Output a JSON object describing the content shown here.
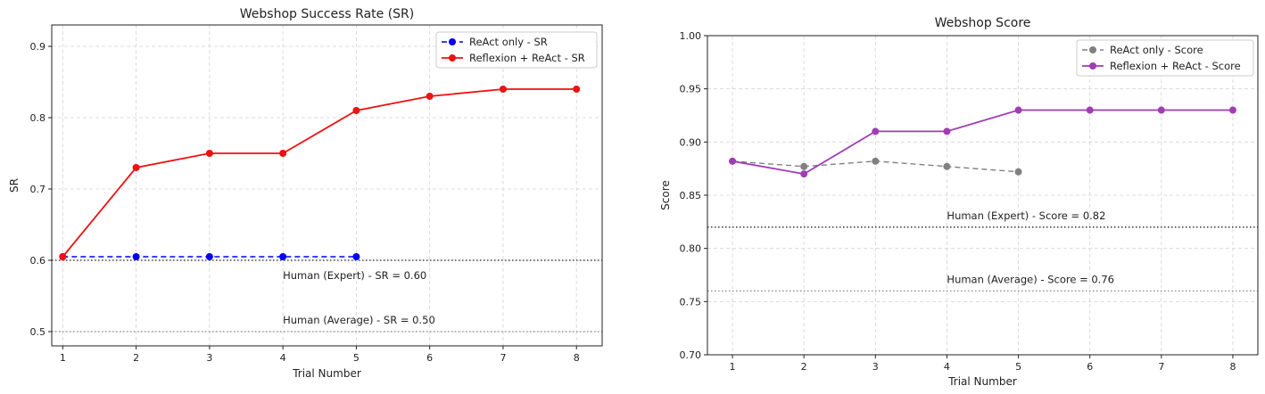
{
  "chart_data": [
    {
      "type": "line",
      "title": "Webshop Success Rate (SR)",
      "xlabel": "Trial Number",
      "ylabel": "SR",
      "xlim": [
        0.85,
        8.35
      ],
      "ylim": [
        0.48,
        0.93
      ],
      "xticks": [
        1,
        2,
        3,
        4,
        5,
        6,
        7,
        8
      ],
      "yticks": [
        0.5,
        0.6,
        0.7,
        0.8,
        0.9
      ],
      "ytick_labels": [
        "0.5",
        "0.6",
        "0.7",
        "0.8",
        "0.9"
      ],
      "grid": true,
      "legend_position": "top-right",
      "series": [
        {
          "name": "ReAct only - SR",
          "x": [
            1,
            2,
            3,
            4,
            5
          ],
          "values": [
            0.605,
            0.605,
            0.605,
            0.605,
            0.605
          ],
          "color": "#0000ee",
          "dashed": true
        },
        {
          "name": "Reflexion + ReAct - SR",
          "x": [
            1,
            2,
            3,
            4,
            5,
            6,
            7,
            8
          ],
          "values": [
            0.605,
            0.73,
            0.75,
            0.75,
            0.81,
            0.83,
            0.84,
            0.84
          ],
          "color": "#ee1111",
          "dashed": false
        }
      ],
      "reference_lines": [
        {
          "value": 0.6,
          "label": "Human (Expert) - SR = 0.60",
          "style": "dotted",
          "color": "#222222"
        },
        {
          "value": 0.5,
          "label": "Human (Average) - SR = 0.50",
          "style": "dotted",
          "color": "#888888"
        }
      ]
    },
    {
      "type": "line",
      "title": "Webshop Score",
      "xlabel": "Trial Number",
      "ylabel": "Score",
      "xlim": [
        0.65,
        8.35
      ],
      "ylim": [
        0.7,
        1.0
      ],
      "xticks": [
        1,
        2,
        3,
        4,
        5,
        6,
        7,
        8
      ],
      "yticks": [
        0.7,
        0.75,
        0.8,
        0.85,
        0.9,
        0.95,
        1.0
      ],
      "ytick_labels": [
        "0.70",
        "0.75",
        "0.80",
        "0.85",
        "0.90",
        "0.95",
        "1.00"
      ],
      "grid": true,
      "legend_position": "top-right",
      "series": [
        {
          "name": "ReAct only - Score",
          "x": [
            1,
            2,
            3,
            4,
            5
          ],
          "values": [
            0.882,
            0.877,
            0.882,
            0.877,
            0.872
          ],
          "color": "#808080",
          "dashed": true
        },
        {
          "name": "Reflexion + ReAct - Score",
          "x": [
            1,
            2,
            3,
            4,
            5,
            6,
            7,
            8
          ],
          "values": [
            0.882,
            0.87,
            0.91,
            0.91,
            0.93,
            0.93,
            0.93,
            0.93
          ],
          "color": "#a03cb4",
          "dashed": false
        }
      ],
      "reference_lines": [
        {
          "value": 0.82,
          "label": "Human (Expert) - Score = 0.82",
          "style": "dotted",
          "color": "#222222"
        },
        {
          "value": 0.76,
          "label": "Human (Average) - Score = 0.76",
          "style": "dotted",
          "color": "#888888"
        }
      ]
    }
  ]
}
